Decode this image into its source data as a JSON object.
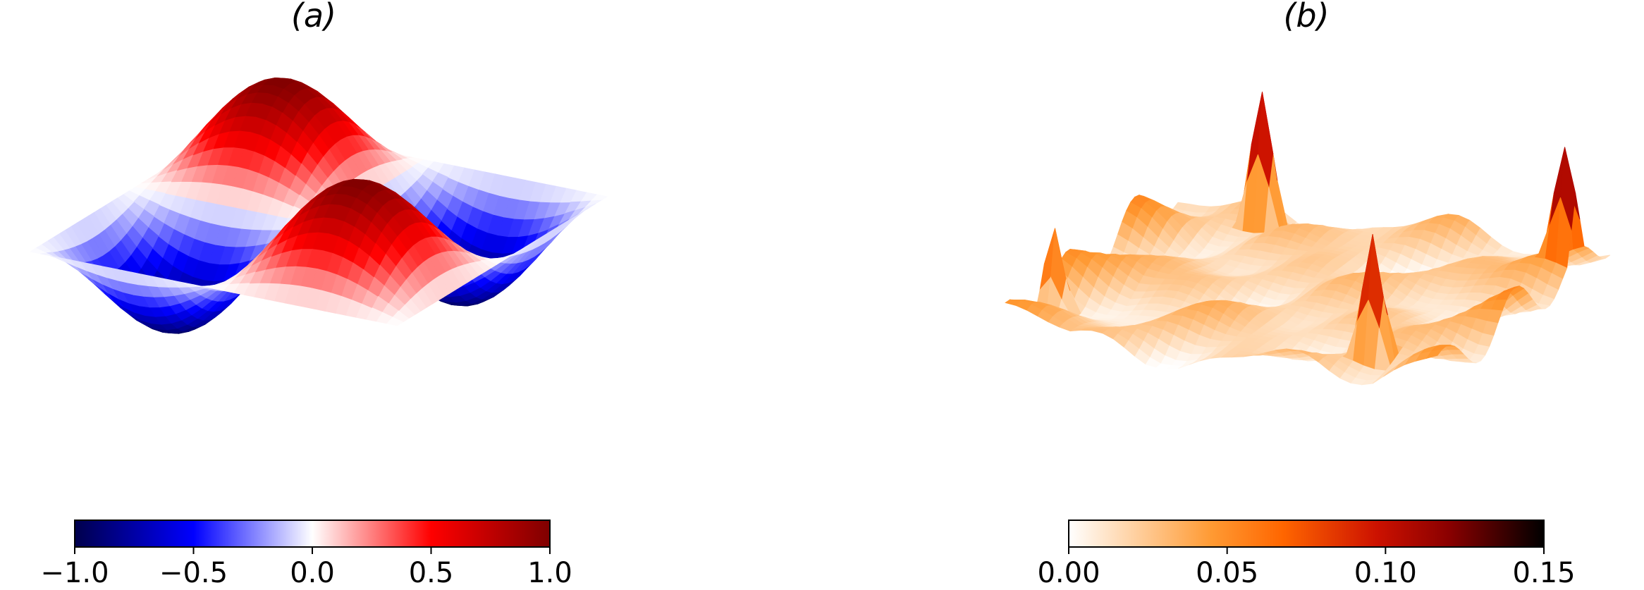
{
  "chart_data": [
    {
      "type": "surface3d",
      "title": "(a)",
      "colormap": "seismic",
      "colorbar": {
        "orientation": "horizontal",
        "placement": "bottom",
        "range": [
          -1.0,
          1.0
        ],
        "ticks": [
          -1.0,
          -0.5,
          0.0,
          0.5,
          1.0
        ],
        "tick_labels": [
          "−1.0",
          "−0.5",
          "0.0",
          "0.5",
          "1.0"
        ]
      },
      "zlim": [
        -1.0,
        1.0
      ],
      "axes": "off"
    },
    {
      "type": "surface3d",
      "title": "(b)",
      "colormap": "gist_heat_r",
      "colorbar": {
        "orientation": "horizontal",
        "placement": "bottom",
        "range": [
          0.0,
          0.15
        ],
        "ticks": [
          0.0,
          0.05,
          0.1,
          0.15
        ],
        "tick_labels": [
          "0.00",
          "0.05",
          "0.10",
          "0.15"
        ]
      },
      "zlim": [
        0.0,
        0.15
      ],
      "axes": "off"
    }
  ]
}
